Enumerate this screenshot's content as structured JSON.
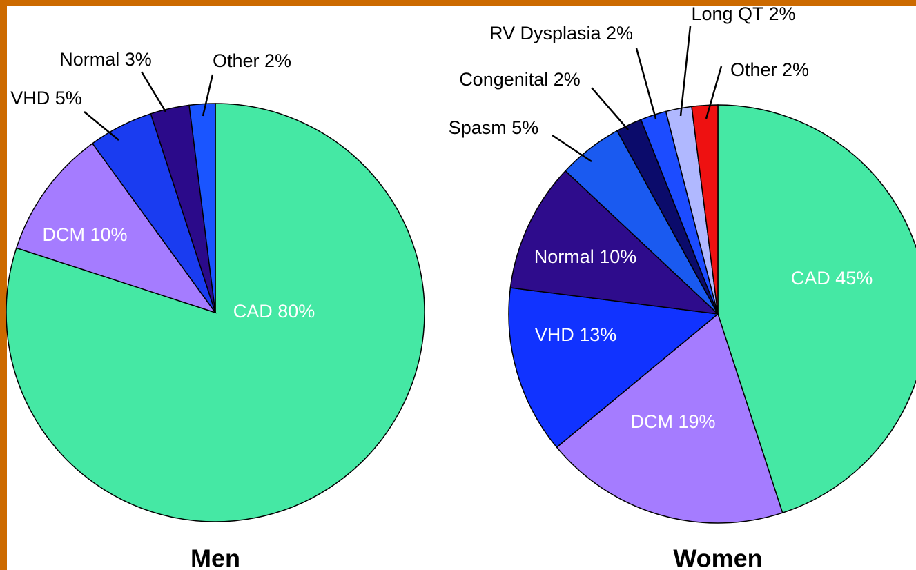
{
  "chart_data": [
    {
      "type": "pie",
      "title": "Men",
      "values": [
        80,
        10,
        5,
        3,
        2
      ],
      "value_labels": [
        "CAD 80%",
        "DCM 10%",
        "VHD 5%",
        "Normal 3%",
        "Other 2%"
      ],
      "colors": [
        "#45e8a4",
        "#a57cff",
        "#1a3cf0",
        "#2b0a8a",
        "#1a55ff"
      ]
    },
    {
      "type": "pie",
      "title": "Women",
      "values": [
        45,
        19,
        13,
        10,
        5,
        2,
        2,
        2,
        2
      ],
      "value_labels": [
        "CAD 45%",
        "DCM 19%",
        "VHD 13%",
        "Normal 10%",
        "Spasm 5%",
        "Congenital 2%",
        "RV Dysplasia 2%",
        "Long QT 2%",
        "Other 2%"
      ],
      "colors": [
        "#45e8a4",
        "#a57cff",
        "#1133ff",
        "#2e0c8c",
        "#1a5af0",
        "#0b0b6b",
        "#1c4cff",
        "#b0b8ff",
        "#ee1111"
      ]
    }
  ]
}
